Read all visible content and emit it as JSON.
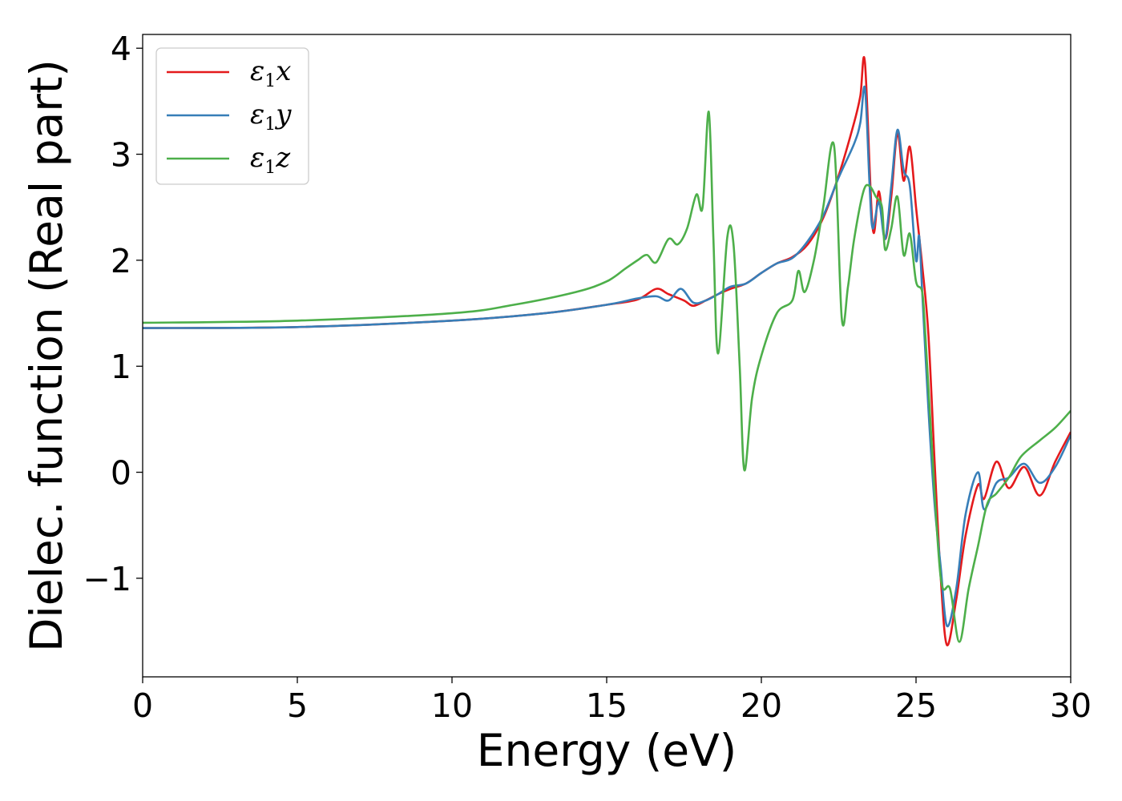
{
  "chart_data": {
    "type": "line",
    "xlabel": "Energy (eV)",
    "ylabel": "Dielec. function (Real part)",
    "xlim": [
      0,
      30
    ],
    "ylim": [
      -1.93,
      4.13
    ],
    "xticks": [
      0,
      5,
      10,
      15,
      20,
      25,
      30
    ],
    "xtick_labels": [
      "0",
      "5",
      "10",
      "15",
      "20",
      "25",
      "30"
    ],
    "yticks": [
      -1,
      0,
      1,
      2,
      3,
      4
    ],
    "ytick_labels": [
      "−1",
      "0",
      "1",
      "2",
      "3",
      "4"
    ],
    "grid": false,
    "legend_position": "top-left",
    "series": [
      {
        "name": "ε1x",
        "symbol": "ε",
        "subscript": "1",
        "suffix": "x",
        "color": "#e41a1c",
        "x": [
          0,
          5,
          10,
          13,
          15,
          16,
          16.6,
          17,
          17.5,
          17.8,
          18.2,
          18.6,
          19,
          19.5,
          20,
          20.5,
          21,
          21.5,
          22,
          22.5,
          23,
          23.2,
          23.35,
          23.6,
          23.8,
          24,
          24.2,
          24.4,
          24.6,
          24.8,
          25,
          25.2,
          25.4,
          25.6,
          25.8,
          26,
          26.3,
          26.6,
          27,
          27.2,
          27.6,
          28,
          28.5,
          29,
          29.5,
          30
        ],
        "y": [
          1.36,
          1.37,
          1.43,
          1.5,
          1.58,
          1.63,
          1.73,
          1.68,
          1.62,
          1.57,
          1.62,
          1.68,
          1.73,
          1.78,
          1.88,
          1.97,
          2.03,
          2.15,
          2.4,
          2.8,
          3.3,
          3.55,
          3.86,
          2.3,
          2.65,
          2.2,
          2.6,
          3.2,
          2.75,
          3.07,
          2.5,
          1.95,
          1.3,
          0.1,
          -1.0,
          -1.63,
          -1.2,
          -0.6,
          -0.12,
          -0.25,
          0.1,
          -0.15,
          0.05,
          -0.22,
          0.1,
          0.38
        ]
      },
      {
        "name": "ε1y",
        "symbol": "ε",
        "subscript": "1",
        "suffix": "y",
        "color": "#377eb8",
        "x": [
          0,
          5,
          10,
          13,
          15,
          16,
          16.6,
          17,
          17.4,
          17.8,
          18.2,
          18.6,
          19,
          19.5,
          20,
          20.5,
          21,
          21.5,
          22,
          22.5,
          23,
          23.2,
          23.35,
          23.5,
          23.6,
          23.8,
          24,
          24.2,
          24.4,
          24.6,
          24.8,
          25,
          25.1,
          25.2,
          25.4,
          25.6,
          25.8,
          26,
          26.3,
          26.6,
          27,
          27.2,
          27.6,
          28,
          28.5,
          29,
          29.5,
          30
        ],
        "y": [
          1.36,
          1.37,
          1.43,
          1.5,
          1.58,
          1.64,
          1.66,
          1.62,
          1.73,
          1.6,
          1.62,
          1.68,
          1.75,
          1.78,
          1.88,
          1.97,
          2.02,
          2.18,
          2.42,
          2.78,
          3.1,
          3.3,
          3.62,
          2.7,
          2.3,
          2.55,
          2.2,
          2.7,
          3.23,
          2.85,
          2.7,
          2.0,
          2.23,
          1.7,
          0.6,
          -0.3,
          -0.9,
          -1.45,
          -1.1,
          -0.4,
          0.0,
          -0.35,
          -0.1,
          -0.05,
          0.08,
          -0.1,
          0.05,
          0.35
        ]
      },
      {
        "name": "ε1z",
        "symbol": "ε",
        "subscript": "1",
        "suffix": "z",
        "color": "#4daf4a",
        "x": [
          0,
          5,
          10,
          12,
          14,
          15,
          15.6,
          16,
          16.3,
          16.6,
          17,
          17.3,
          17.6,
          17.9,
          18.1,
          18.3,
          18.45,
          18.6,
          18.9,
          19.1,
          19.3,
          19.45,
          19.7,
          20,
          20.5,
          21,
          21.2,
          21.4,
          21.7,
          22,
          22.35,
          22.6,
          22.8,
          23,
          23.3,
          23.5,
          23.7,
          23.9,
          24,
          24.2,
          24.4,
          24.6,
          24.8,
          25,
          25.2,
          25.3,
          25.5,
          25.8,
          26.1,
          26.4,
          26.7,
          27,
          27.3,
          27.6,
          28,
          28.4,
          29,
          29.5,
          30
        ],
        "y": [
          1.41,
          1.43,
          1.5,
          1.58,
          1.7,
          1.8,
          1.92,
          2.0,
          2.05,
          1.98,
          2.2,
          2.15,
          2.3,
          2.62,
          2.5,
          3.4,
          2.2,
          1.12,
          2.22,
          2.15,
          1.0,
          0.02,
          0.7,
          1.1,
          1.5,
          1.62,
          1.9,
          1.7,
          2.0,
          2.5,
          3.08,
          1.45,
          1.75,
          2.2,
          2.65,
          2.7,
          2.6,
          2.5,
          2.1,
          2.3,
          2.6,
          2.05,
          2.25,
          1.8,
          1.7,
          1.3,
          0.3,
          -1.0,
          -1.1,
          -1.6,
          -1.1,
          -0.7,
          -0.3,
          -0.2,
          -0.05,
          0.15,
          0.3,
          0.42,
          0.58
        ]
      }
    ]
  }
}
